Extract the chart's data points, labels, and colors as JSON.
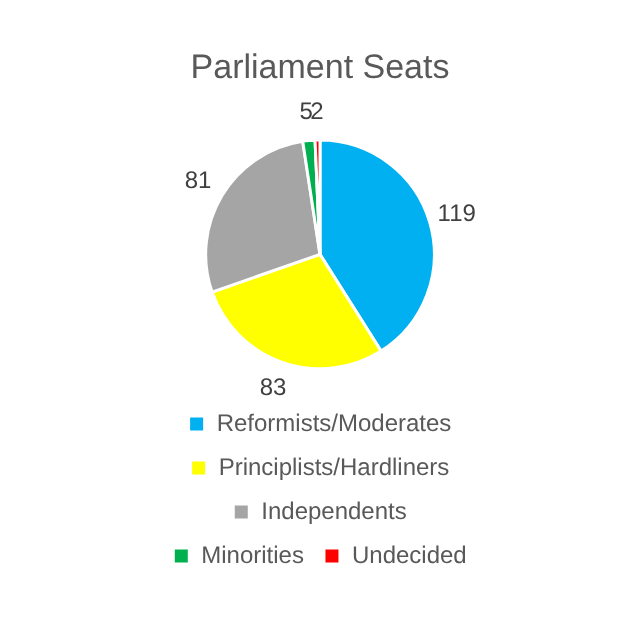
{
  "chart_data": {
    "type": "pie",
    "title": "Parliament Seats",
    "categories": [
      "Reformists/Moderates",
      "Principlists/Hardliners",
      "Independents",
      "Minorities",
      "Undecided"
    ],
    "values": [
      119,
      83,
      81,
      5,
      2
    ],
    "colors": [
      "#00b0f0",
      "#ffff00",
      "#a5a5a5",
      "#00b050",
      "#ff0000"
    ],
    "data_labels": true,
    "legend": "bottom"
  }
}
